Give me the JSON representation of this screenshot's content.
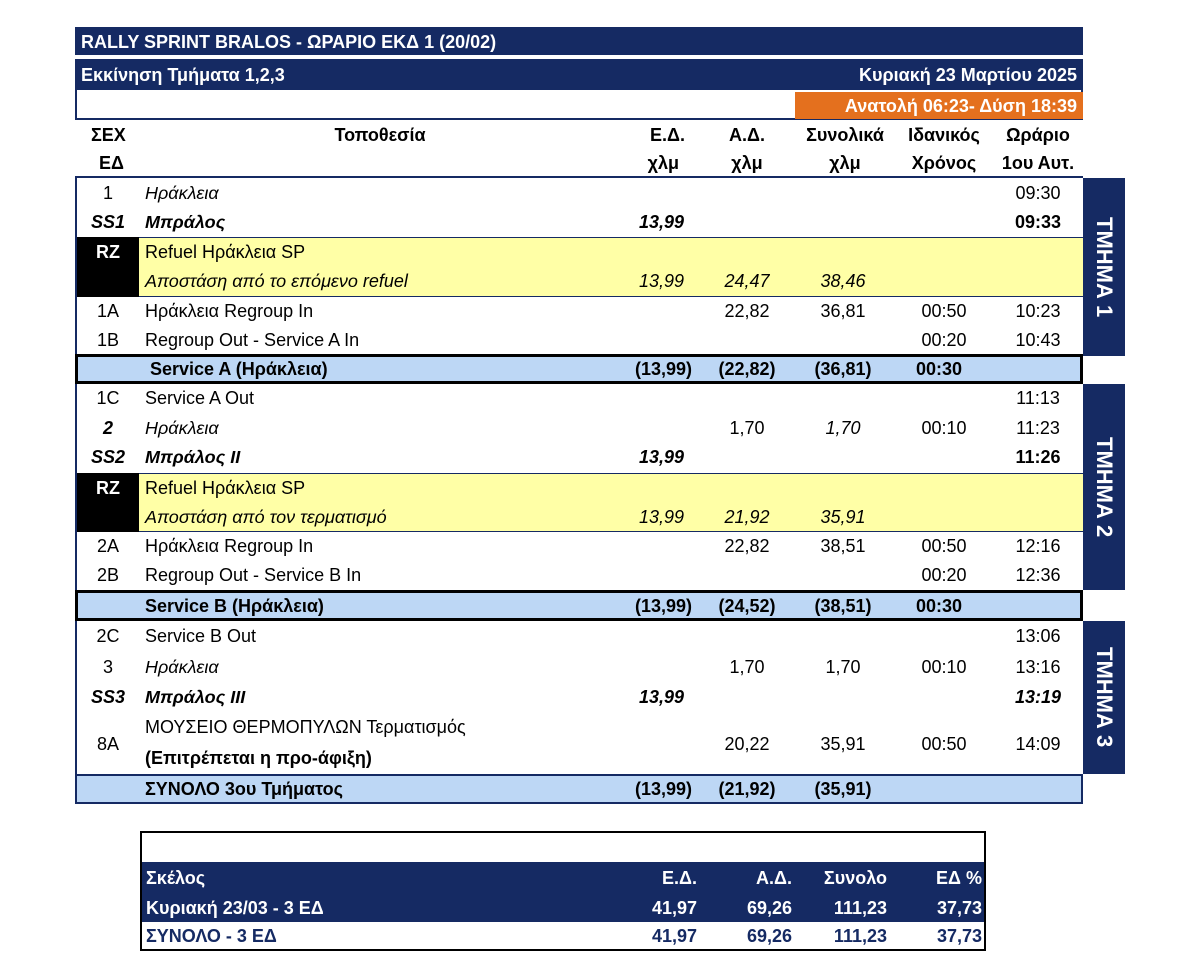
{
  "header": {
    "title": "RALLY SPRINT BRALOS - ΩΡΑΡΙΟ ΕΚΔ 1 (20/02)",
    "start_sections": "Εκκίνηση Τμήματα 1,2,3",
    "date": "Κυριακή 23 Μαρτίου 2025",
    "sun": "Ανατολή 06:23- Δύση 18:39"
  },
  "columns": {
    "tc_1": "ΣΕΧ",
    "tc_2": "ΕΔ",
    "location": "Τοποθεσία",
    "ss_1": "Ε.Δ.",
    "ss_2": "χλμ",
    "liaison_1": "Α.Δ.",
    "liaison_2": "χλμ",
    "total_1": "Συνολικά",
    "total_2": "χλμ",
    "ideal_1": "Ιδανικός",
    "ideal_2": "Χρόνος",
    "time_1": "Ωράριο",
    "time_2": "1ου Αυτ."
  },
  "sections": [
    "ΤΜΗΜΑ 1",
    "ΤΜΗΜΑ 2",
    "ΤΜΗΜΑ 3"
  ],
  "rows": [
    {
      "tc": "1",
      "loc": "Ηράκλεια",
      "ss": "",
      "ld": "",
      "tot": "",
      "ideal": "",
      "time": "09:30"
    },
    {
      "tc": "SS1",
      "loc": "Μπράλος",
      "ss": "13,99",
      "ld": "",
      "tot": "",
      "ideal": "",
      "time": "09:33"
    },
    {
      "tc": "RZ",
      "loc": "Refuel Ηράκλεια SP",
      "ss": "",
      "ld": "",
      "tot": "",
      "ideal": "",
      "time": ""
    },
    {
      "tc": "",
      "loc": "Αποστάση από το επόμενο refuel",
      "ss": "13,99",
      "ld": "24,47",
      "tot": "38,46",
      "ideal": "",
      "time": ""
    },
    {
      "tc": "1A",
      "loc": "Ηράκλεια Regroup  In",
      "ss": "",
      "ld": "22,82",
      "tot": "36,81",
      "ideal": "00:50",
      "time": "10:23"
    },
    {
      "tc": "1B",
      "loc": "Regroup Out - Service A  In",
      "ss": "",
      "ld": "",
      "tot": "",
      "ideal": "00:20",
      "time": "10:43"
    },
    {
      "tc": "",
      "loc": "Service A (Ηράκλεια)",
      "ss": "(13,99)",
      "ld": "(22,82)",
      "tot": "(36,81)",
      "ideal": "00:30",
      "time": ""
    },
    {
      "tc": "1C",
      "loc": "Service A Out",
      "ss": "",
      "ld": "",
      "tot": "",
      "ideal": "",
      "time": "11:13"
    },
    {
      "tc": "2",
      "loc": "Ηράκλεια",
      "ss": "",
      "ld": "1,70",
      "tot": "1,70",
      "ideal": "00:10",
      "time": "11:23"
    },
    {
      "tc": "SS2",
      "loc": "Μπράλος ΙΙ",
      "ss": "13,99",
      "ld": "",
      "tot": "",
      "ideal": "",
      "time": "11:26"
    },
    {
      "tc": "RZ",
      "loc": "Refuel Ηράκλεια SP",
      "ss": "",
      "ld": "",
      "tot": "",
      "ideal": "",
      "time": ""
    },
    {
      "tc": "",
      "loc": "Αποστάση από τον τερματισμό",
      "ss": "13,99",
      "ld": "21,92",
      "tot": "35,91",
      "ideal": "",
      "time": ""
    },
    {
      "tc": "2A",
      "loc": "Ηράκλεια Regroup  In",
      "ss": "",
      "ld": "22,82",
      "tot": "38,51",
      "ideal": "00:50",
      "time": "12:16"
    },
    {
      "tc": "2B",
      "loc": "Regroup Out - Service B  In",
      "ss": "",
      "ld": "",
      "tot": "",
      "ideal": "00:20",
      "time": "12:36"
    },
    {
      "tc": "",
      "loc": "Service B  (Ηράκλεια)",
      "ss": "(13,99)",
      "ld": "(24,52)",
      "tot": "(38,51)",
      "ideal": "00:30",
      "time": ""
    },
    {
      "tc": "2C",
      "loc": "Service B Out",
      "ss": "",
      "ld": "",
      "tot": "",
      "ideal": "",
      "time": "13:06"
    },
    {
      "tc": "3",
      "loc": "Ηράκλεια",
      "ss": "",
      "ld": "1,70",
      "tot": "1,70",
      "ideal": "00:10",
      "time": "13:16"
    },
    {
      "tc": "SS3",
      "loc": "Μπράλος ΙΙΙ",
      "ss": "13,99",
      "ld": "",
      "tot": "",
      "ideal": "",
      "time": "13:19"
    },
    {
      "tc": "8A",
      "loc": "ΜΟΥΣΕΙΟ ΘΕΡΜΟΠΥΛΩΝ Τερματισμός",
      "loc2": "(Επιτρέπεται η προ-άφιξη)",
      "ss": "",
      "ld": "20,22",
      "tot": "35,91",
      "ideal": "00:50",
      "time": "14:09"
    },
    {
      "tc": "",
      "loc": "ΣΥΝΟΛΟ 3ου Τμήματος",
      "ss": "(13,99)",
      "ld": "(21,92)",
      "tot": "(35,91)",
      "ideal": "",
      "time": ""
    }
  ],
  "summary": {
    "headers": [
      "Σκέλος",
      "Ε.Δ.",
      "Α.Δ.",
      "Συνολο",
      "ΕΔ %"
    ],
    "rows": [
      [
        "Κυριακή 23/03   - 3 ΕΔ",
        "41,97",
        "69,26",
        "111,23",
        "37,73"
      ],
      [
        "ΣΥΝΟΛΟ - 3 ΕΔ",
        "41,97",
        "69,26",
        "111,23",
        "37,73"
      ]
    ]
  },
  "colors": {
    "navy": "#152a63",
    "orange": "#e4701e",
    "yellow": "#ffffa6",
    "light_blue": "#bdd7f5",
    "black": "#000000"
  }
}
